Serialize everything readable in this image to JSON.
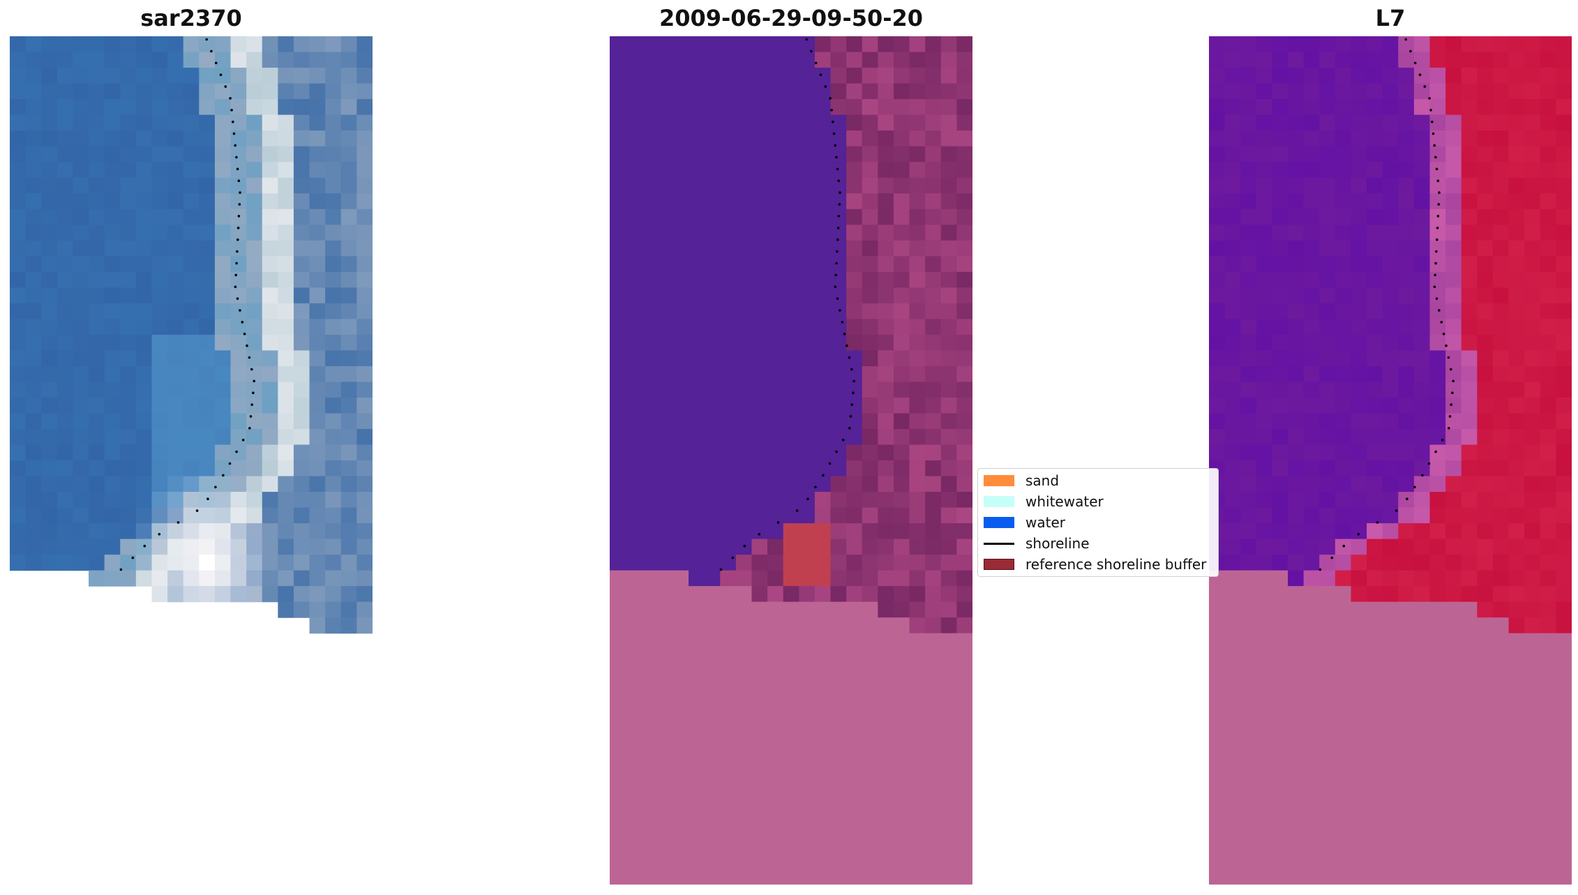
{
  "panels": [
    {
      "title": "sar2370",
      "kind": "rgb"
    },
    {
      "title": "2009-06-29-09-50-20",
      "kind": "classified"
    },
    {
      "title": "L7",
      "kind": "index"
    }
  ],
  "legend": {
    "items": [
      {
        "label": "sand",
        "color": "#ff8c3a",
        "type": "patch"
      },
      {
        "label": "whitewater",
        "color": "#c6fff7",
        "type": "patch"
      },
      {
        "label": "water",
        "color": "#0a5cf0",
        "type": "patch"
      },
      {
        "label": "shoreline",
        "color": "#000000",
        "type": "line"
      },
      {
        "label": "reference shoreline buffer",
        "color": "#9a2a35",
        "type": "patch"
      }
    ]
  },
  "colors": {
    "no_data": "#bc6595",
    "classified_water": "#552297",
    "index_water": "#6e1a9e",
    "index_land": "#c8113f",
    "rgb_water": "#3366a8",
    "rgb_surf": "#f2f2f5"
  }
}
